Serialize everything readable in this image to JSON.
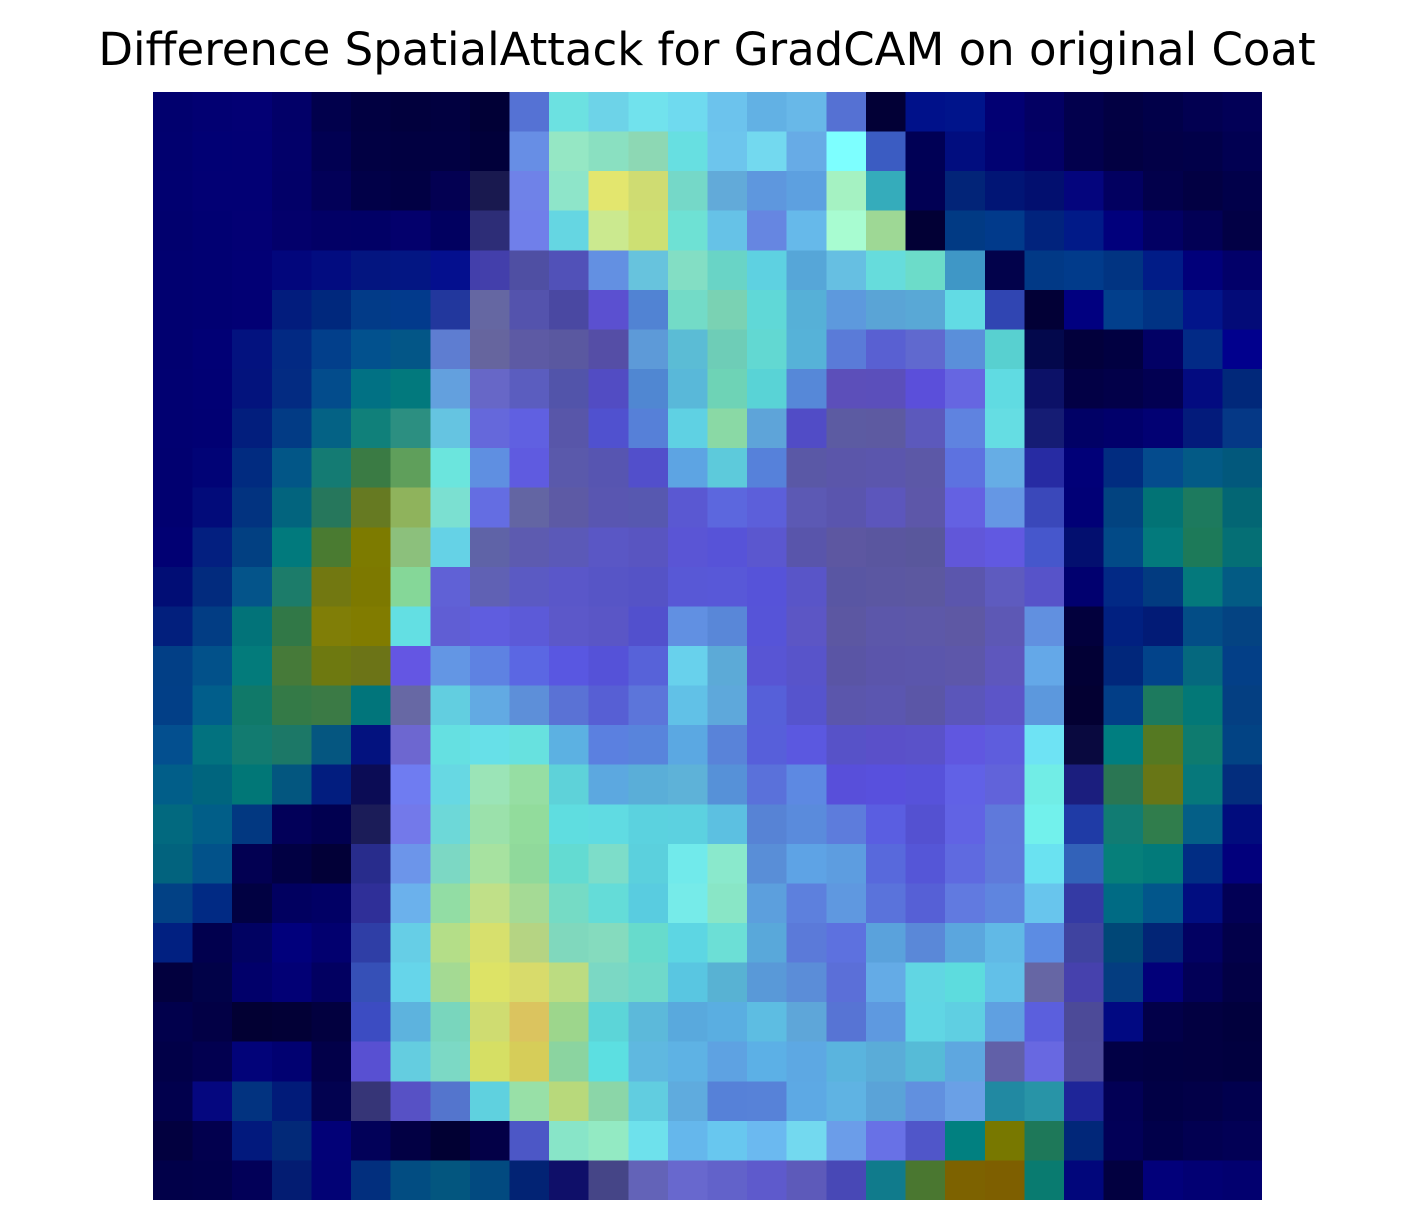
{
  "title": "Difference SpatialAttack for GradCAM on original Coat",
  "image": {
    "description_type": "gradcam-overlay-heatmap",
    "grid_rows": 28,
    "grid_cols": 28,
    "colors": [
      "#01006e",
      "#020072",
      "#030074",
      "#020068",
      "#01004c",
      "#010041",
      "#01003d",
      "#010040",
      "#010036",
      "#5572d4",
      "#6ce1e1",
      "#6dd3e8",
      "#71e2ed",
      "#6fdaef",
      "#6cc3ed",
      "#62b1e4",
      "#68b8e8",
      "#5571d3",
      "#020036",
      "#00118a",
      "#00148b",
      "#020073",
      "#030063",
      "#02004d",
      "#020043",
      "#010049",
      "#020051",
      "#020057",
      "#01006f",
      "#010074",
      "#020074",
      "#020069",
      "#010052",
      "#010043",
      "#010041",
      "#010042",
      "#01003a",
      "#678ee5",
      "#95e7c4",
      "#8ae0c1",
      "#8dd8b4",
      "#67dfe1",
      "#6dc5ed",
      "#73d9ef",
      "#67abe6",
      "#7dffff",
      "#3b5cc2",
      "#000055",
      "#010d7f",
      "#010272",
      "#030066",
      "#02004d",
      "#020042",
      "#020047",
      "#010049",
      "#010052",
      "#010070",
      "#020074",
      "#020074",
      "#020068",
      "#020058",
      "#010048",
      "#010044",
      "#030052",
      "#19194f",
      "#6f82e8",
      "#8ee5c9",
      "#e3e66e",
      "#cfdc72",
      "#75d8c8",
      "#62aad9",
      "#5e97de",
      "#5da0e0",
      "#a5f2c2",
      "#35acbb",
      "#010054",
      "#022478",
      "#011575",
      "#020f6f",
      "#04057d",
      "#020060",
      "#02004b",
      "#020043",
      "#01004a",
      "#01006e",
      "#010072",
      "#030074",
      "#03006b",
      "#020066",
      "#010066",
      "#03006c",
      "#010060",
      "#2d2d77",
      "#707fea",
      "#65d6e2",
      "#cbe98f",
      "#cde073",
      "#6ee1d4",
      "#66c2e7",
      "#6686e1",
      "#66b9ea",
      "#a8fcd1",
      "#9ed895",
      "#020035",
      "#013a84",
      "#013a8b",
      "#01237d",
      "#011a88",
      "#01007c",
      "#020063",
      "#020055",
      "#020045",
      "#010070",
      "#010072",
      "#020075",
      "#02067c",
      "#020c80",
      "#031580",
      "#031683",
      "#040f8e",
      "#433fab",
      "#4f4fa3",
      "#5151b8",
      "#6390e2",
      "#67c3dd",
      "#83dec4",
      "#69d4c6",
      "#5ed1e1",
      "#56a6d8",
      "#66bfe2",
      "#66dcdc",
      "#6cdcc9",
      "#3f97c6",
      "#02024b",
      "#013986",
      "#013b8b",
      "#013482",
      "#011c87",
      "#01007a",
      "#020069",
      "#010070",
      "#010072",
      "#020074",
      "#021c7d",
      "#00287d",
      "#023b88",
      "#023a8c",
      "#22379d",
      "#6567a2",
      "#5453ad",
      "#4a48a2",
      "#5b50d0",
      "#5183d3",
      "#73dbc7",
      "#7ad2b3",
      "#60d8d7",
      "#56b0d7",
      "#5d99dd",
      "#5aa4d6",
      "#59a8d6",
      "#62dbe4",
      "#3045b2",
      "#020036",
      "#010080",
      "#023f8c",
      "#013384",
      "#02158a",
      "#030b78",
      "#010070",
      "#010075",
      "#03127f",
      "#022983",
      "#023f8b",
      "#02518e",
      "#035687",
      "#5e7dd1",
      "#66659e",
      "#5d5aa4",
      "#5a58a0",
      "#554ea6",
      "#5d9ad8",
      "#5bbcd5",
      "#6ecdb7",
      "#62d8d2",
      "#56b2d8",
      "#5a7bd8",
      "#5960d2",
      "#6069cf",
      "#5a8fda",
      "#58d0d0",
      "#03084c",
      "#02003c",
      "#010041",
      "#020165",
      "#022a86",
      "#01008d",
      "#010071",
      "#010074",
      "#03137d",
      "#032b82",
      "#034c8c",
      "#017184",
      "#02797d",
      "#63a0de",
      "#6767c7",
      "#5b5dbf",
      "#5254aa",
      "#524cc3",
      "#5087d2",
      "#59b8d9",
      "#6ed3b6",
      "#59d3d6",
      "#5688d8",
      "#5c4fba",
      "#5b4fbb",
      "#5b4fda",
      "#6666e1",
      "#60dbe2",
      "#0c1167",
      "#020045",
      "#020049",
      "#020052",
      "#030b80",
      "#01287a",
      "#010071",
      "#010073",
      "#021e7d",
      "#023b85",
      "#046285",
      "#10807a",
      "#2c8f81",
      "#65c4e1",
      "#6568db",
      "#6060e1",
      "#5856a9",
      "#5051cf",
      "#5680d8",
      "#5fd1e3",
      "#8ad9a5",
      "#5ea4d9",
      "#514cc6",
      "#5c5ba2",
      "#5d5aa1",
      "#5c59bc",
      "#5f83e0",
      "#65dde3",
      "#151c74",
      "#010166",
      "#01006b",
      "#020173",
      "#031b7b",
      "#053886",
      "#010070",
      "#010376",
      "#012b80",
      "#025687",
      "#147b73",
      "#3a7b44",
      "#5f9f5b",
      "#6be5dd",
      "#5f8fe1",
      "#5f5be0",
      "#5a59ab",
      "#5755b1",
      "#524fcb",
      "#5da4e3",
      "#5dcadb",
      "#5681da",
      "#5a58a6",
      "#5b56aa",
      "#5b56ad",
      "#5c58a7",
      "#5d72e0",
      "#66ade5",
      "#272ba3",
      "#010078",
      "#012c80",
      "#044b8d",
      "#035a86",
      "#02587c",
      "#010070",
      "#020b7a",
      "#023380",
      "#02647e",
      "#26775c",
      "#667a22",
      "#8fb35c",
      "#7be0d1",
      "#646de2",
      "#6365a3",
      "#5d5aa5",
      "#5956b1",
      "#5758b0",
      "#5a58d2",
      "#5c67de",
      "#5c5fda",
      "#5c59b4",
      "#5a55ae",
      "#5c56bc",
      "#5d57a9",
      "#6461e2",
      "#6597e4",
      "#3a48ba",
      "#010076",
      "#024380",
      "#027375",
      "#1d7a5e",
      "#036674",
      "#010073",
      "#031f80",
      "#024082",
      "#017a7d",
      "#4a7b31",
      "#7d7b00",
      "#8cc07c",
      "#65d2e6",
      "#5f63a7",
      "#5d5bb0",
      "#5b59b8",
      "#5a57c5",
      "#5955c1",
      "#5a55d5",
      "#5753d8",
      "#5b57cf",
      "#5955ab",
      "#5d57a1",
      "#5a569f",
      "#59579c",
      "#6157d9",
      "#6159e1",
      "#4657cc",
      "#030f6f",
      "#024a87",
      "#037a7c",
      "#1d7a59",
      "#056f75",
      "#010d75",
      "#022b7e",
      "#04548a",
      "#1c7c6a",
      "#727811",
      "#7d7900",
      "#85d798",
      "#6061d6",
      "#6061b4",
      "#5b5ac3",
      "#5a57c9",
      "#5755c6",
      "#5553c6",
      "#5858d6",
      "#5858d8",
      "#5653d9",
      "#5955c8",
      "#5956a3",
      "#5b57a2",
      "#5c58a0",
      "#5b56ad",
      "#5e5bbf",
      "#5753c9",
      "#01006f",
      "#022985",
      "#023b80",
      "#04797c",
      "#035b84",
      "#021f7d",
      "#023d84",
      "#027379",
      "#317847",
      "#807e07",
      "#817c00",
      "#63dfe3",
      "#605ed4",
      "#5f5ddf",
      "#5c5ad8",
      "#5c58c9",
      "#5a56c6",
      "#5250cd",
      "#6190e2",
      "#5987d8",
      "#5654d8",
      "#5c56c5",
      "#5c57a2",
      "#5c57aa",
      "#5d58a8",
      "#5e58a4",
      "#5d58b5",
      "#6190e0",
      "#02003d",
      "#012080",
      "#021b76",
      "#034d86",
      "#044382",
      "#023f86",
      "#02518a",
      "#037b7b",
      "#467a39",
      "#6e7910",
      "#6c7417",
      "#6456e3",
      "#6396e4",
      "#5e82e2",
      "#5b67e3",
      "#5957e1",
      "#5552d8",
      "#5762d9",
      "#68d1ec",
      "#5caad7",
      "#5855d4",
      "#5854ca",
      "#5a55a5",
      "#5b55ab",
      "#5b56ac",
      "#5d57aa",
      "#5e57bd",
      "#64a8e8",
      "#020035",
      "#01277b",
      "#02438a",
      "#05687e",
      "#033f87",
      "#023f87",
      "#015e8b",
      "#107969",
      "#347a47",
      "#3b7a45",
      "#01757b",
      "#6768a4",
      "#62cee0",
      "#62aae3",
      "#5d8fd9",
      "#5a72d5",
      "#575fd4",
      "#5c75da",
      "#61c1e7",
      "#5ea8db",
      "#5660d9",
      "#5654cd",
      "#5b56ac",
      "#5b56b0",
      "#5b56a7",
      "#5b56ba",
      "#5c55c8",
      "#5c98dd",
      "#030032",
      "#023e87",
      "#1d7a5e",
      "#037877",
      "#043f82",
      "#034f8f",
      "#02727f",
      "#127b70",
      "#1c7867",
      "#055680",
      "#03127f",
      "#6d67d0",
      "#65e0e1",
      "#67e0e8",
      "#67e1df",
      "#5cb1e2",
      "#5b80e0",
      "#5884dc",
      "#5ba8e2",
      "#5983d9",
      "#575fda",
      "#5b58e0",
      "#5752c8",
      "#5a50c9",
      "#5a52c9",
      "#6057e0",
      "#5e5ddd",
      "#6ee3f4",
      "#09093f",
      "#007e80",
      "#557922",
      "#0e7b6f",
      "#024384",
      "#015e89",
      "#00657e",
      "#017777",
      "#03567f",
      "#021d7f",
      "#0b0c55",
      "#6f7cf1",
      "#67d8e3",
      "#9be4b7",
      "#96dea3",
      "#5ed2d9",
      "#5ca8e0",
      "#5aaed8",
      "#5eb2d8",
      "#5691d8",
      "#5a71da",
      "#5d89e2",
      "#584fda",
      "#5850dd",
      "#5752da",
      "#6161e6",
      "#6163da",
      "#71ede6",
      "#1b1e7e",
      "#2a7653",
      "#687616",
      "#06787b",
      "#032d7d",
      "#02697f",
      "#015e88",
      "#023881",
      "#020059",
      "#010050",
      "#1b1c58",
      "#7379ea",
      "#6dd8d8",
      "#9be1ab",
      "#92dc9c",
      "#5fdde0",
      "#60dbe2",
      "#5bd2df",
      "#5cd1e0",
      "#5cc0e1",
      "#5783d5",
      "#5a8bdc",
      "#5d7cdc",
      "#5a5ee1",
      "#5451d1",
      "#6163e4",
      "#5f79db",
      "#72f1ec",
      "#1f3ba6",
      "#117c73",
      "#307d4c",
      "#045f87",
      "#010c7d",
      "#02637e",
      "#02528a",
      "#020052",
      "#010043",
      "#020037",
      "#282c8c",
      "#6c95ea",
      "#7cd8c4",
      "#a7e2a0",
      "#90d99b",
      "#63dbd2",
      "#7dddc9",
      "#5bd0dd",
      "#71eaeb",
      "#8ae9cc",
      "#598ed7",
      "#5ea3e5",
      "#5d9de0",
      "#5869dc",
      "#5556d7",
      "#5f6ae0",
      "#5f7adb",
      "#6ae2f1",
      "#3262b9",
      "#067f7a",
      "#027a7a",
      "#012d84",
      "#02007c",
      "#024185",
      "#012a84",
      "#010142",
      "#010060",
      "#010065",
      "#2f2f98",
      "#6bb1ec",
      "#92dda4",
      "#c0e088",
      "#a5da95",
      "#75dbc5",
      "#64dcd8",
      "#59cce0",
      "#76ebe9",
      "#89e6c6",
      "#5c9fdd",
      "#5d80dd",
      "#5f98e0",
      "#5a73db",
      "#5660d6",
      "#617ae0",
      "#5f85df",
      "#68c5ed",
      "#343aa4",
      "#006b84",
      "#02568b",
      "#010d80",
      "#020055",
      "#012081",
      "#01004e",
      "#010262",
      "#01007c",
      "#02006f",
      "#2f3ea6",
      "#66cee6",
      "#b4de88",
      "#d7e06d",
      "#b5d483",
      "#80d8bd",
      "#85dbbe",
      "#67dbcc",
      "#5dd6e3",
      "#6cdfd6",
      "#59a8da",
      "#5b7ad9",
      "#5d71df",
      "#5aa2dc",
      "#5a88d8",
      "#5ba6de",
      "#61b9e6",
      "#5c8ce3",
      "#3f43a0",
      "#004777",
      "#022576",
      "#020162",
      "#02004a",
      "#02003e",
      "#010248",
      "#01006a",
      "#020075",
      "#020061",
      "#3650b7",
      "#66d5ea",
      "#a4da93",
      "#dde366",
      "#d8db6b",
      "#bcdc81",
      "#7bd8c4",
      "#6fd9ca",
      "#59c6e1",
      "#58b2d3",
      "#5999d8",
      "#5b8dd8",
      "#5b6fd8",
      "#64abe6",
      "#61d6e3",
      "#5ddcde",
      "#62c0e8",
      "#6666a4",
      "#4641ad",
      "#043d80",
      "#020079",
      "#020057",
      "#020045",
      "#01004c",
      "#020045",
      "#020033",
      "#020036",
      "#02003f",
      "#3c4cc2",
      "#5db3de",
      "#79d6bd",
      "#cfdc71",
      "#dbc45f",
      "#9dd68c",
      "#5cd5d8",
      "#5cb9da",
      "#59a9dd",
      "#5aaee1",
      "#5dbde2",
      "#5ea6d9",
      "#5774d4",
      "#5e99e0",
      "#60d6e4",
      "#5fcfe2",
      "#5fa0e1",
      "#5b5fdd",
      "#4c4a98",
      "#010982",
      "#020049",
      "#020041",
      "#01003d",
      "#010048",
      "#020050",
      "#020379",
      "#010171",
      "#020049",
      "#5850d2",
      "#64cde0",
      "#7cd9c5",
      "#d6df64",
      "#d6cd59",
      "#8bd4a0",
      "#5cdfe1",
      "#5fb8e0",
      "#5eb2e4",
      "#5ea2e2",
      "#5cb0e6",
      "#5da8e3",
      "#5ab4de",
      "#5aacd8",
      "#56bbd7",
      "#5ea7e0",
      "#6160a8",
      "#6868e1",
      "#4d4b9b",
      "#010045",
      "#010042",
      "#020041",
      "#01003f",
      "#01004d",
      "#05077f",
      "#023380",
      "#011b79",
      "#020250",
      "#363577",
      "#5751c5",
      "#5475cd",
      "#5fd1df",
      "#98e0a7",
      "#b8d97b",
      "#8bd6a8",
      "#61cde0",
      "#5fabde",
      "#5681d8",
      "#5782d8",
      "#5da9e4",
      "#5fb3e3",
      "#5aa3d8",
      "#6190df",
      "#6aa0e6",
      "#2189a2",
      "#2894a7",
      "#1e2598",
      "#020055",
      "#010045",
      "#020048",
      "#01004e",
      "#02003f",
      "#02004e",
      "#02197d",
      "#022978",
      "#020177",
      "#020159",
      "#020044",
      "#010033",
      "#030047",
      "#4c57c6",
      "#88e5c8",
      "#93eac3",
      "#6ee1ec",
      "#65b7ec",
      "#68c7ef",
      "#6bb9f0",
      "#73d9ef",
      "#6b9de9",
      "#6871e6",
      "#5056c9",
      "#018080",
      "#787800",
      "#1e7859",
      "#012779",
      "#020057",
      "#01004a",
      "#020051",
      "#020055",
      "#010049",
      "#01004b",
      "#020058",
      "#031c72",
      "#020275",
      "#022f7e",
      "#024d82",
      "#03567f",
      "#024a80",
      "#022374",
      "#0f0f69",
      "#454587",
      "#6363b8",
      "#6868ce",
      "#6262ca",
      "#5e5acc",
      "#5d5aba",
      "#4848b6",
      "#107b8c",
      "#4a7730",
      "#7d6200",
      "#7e5f00",
      "#097b70",
      "#01067b",
      "#020040",
      "#02007a",
      "#020073",
      "#02006f"
    ]
  }
}
